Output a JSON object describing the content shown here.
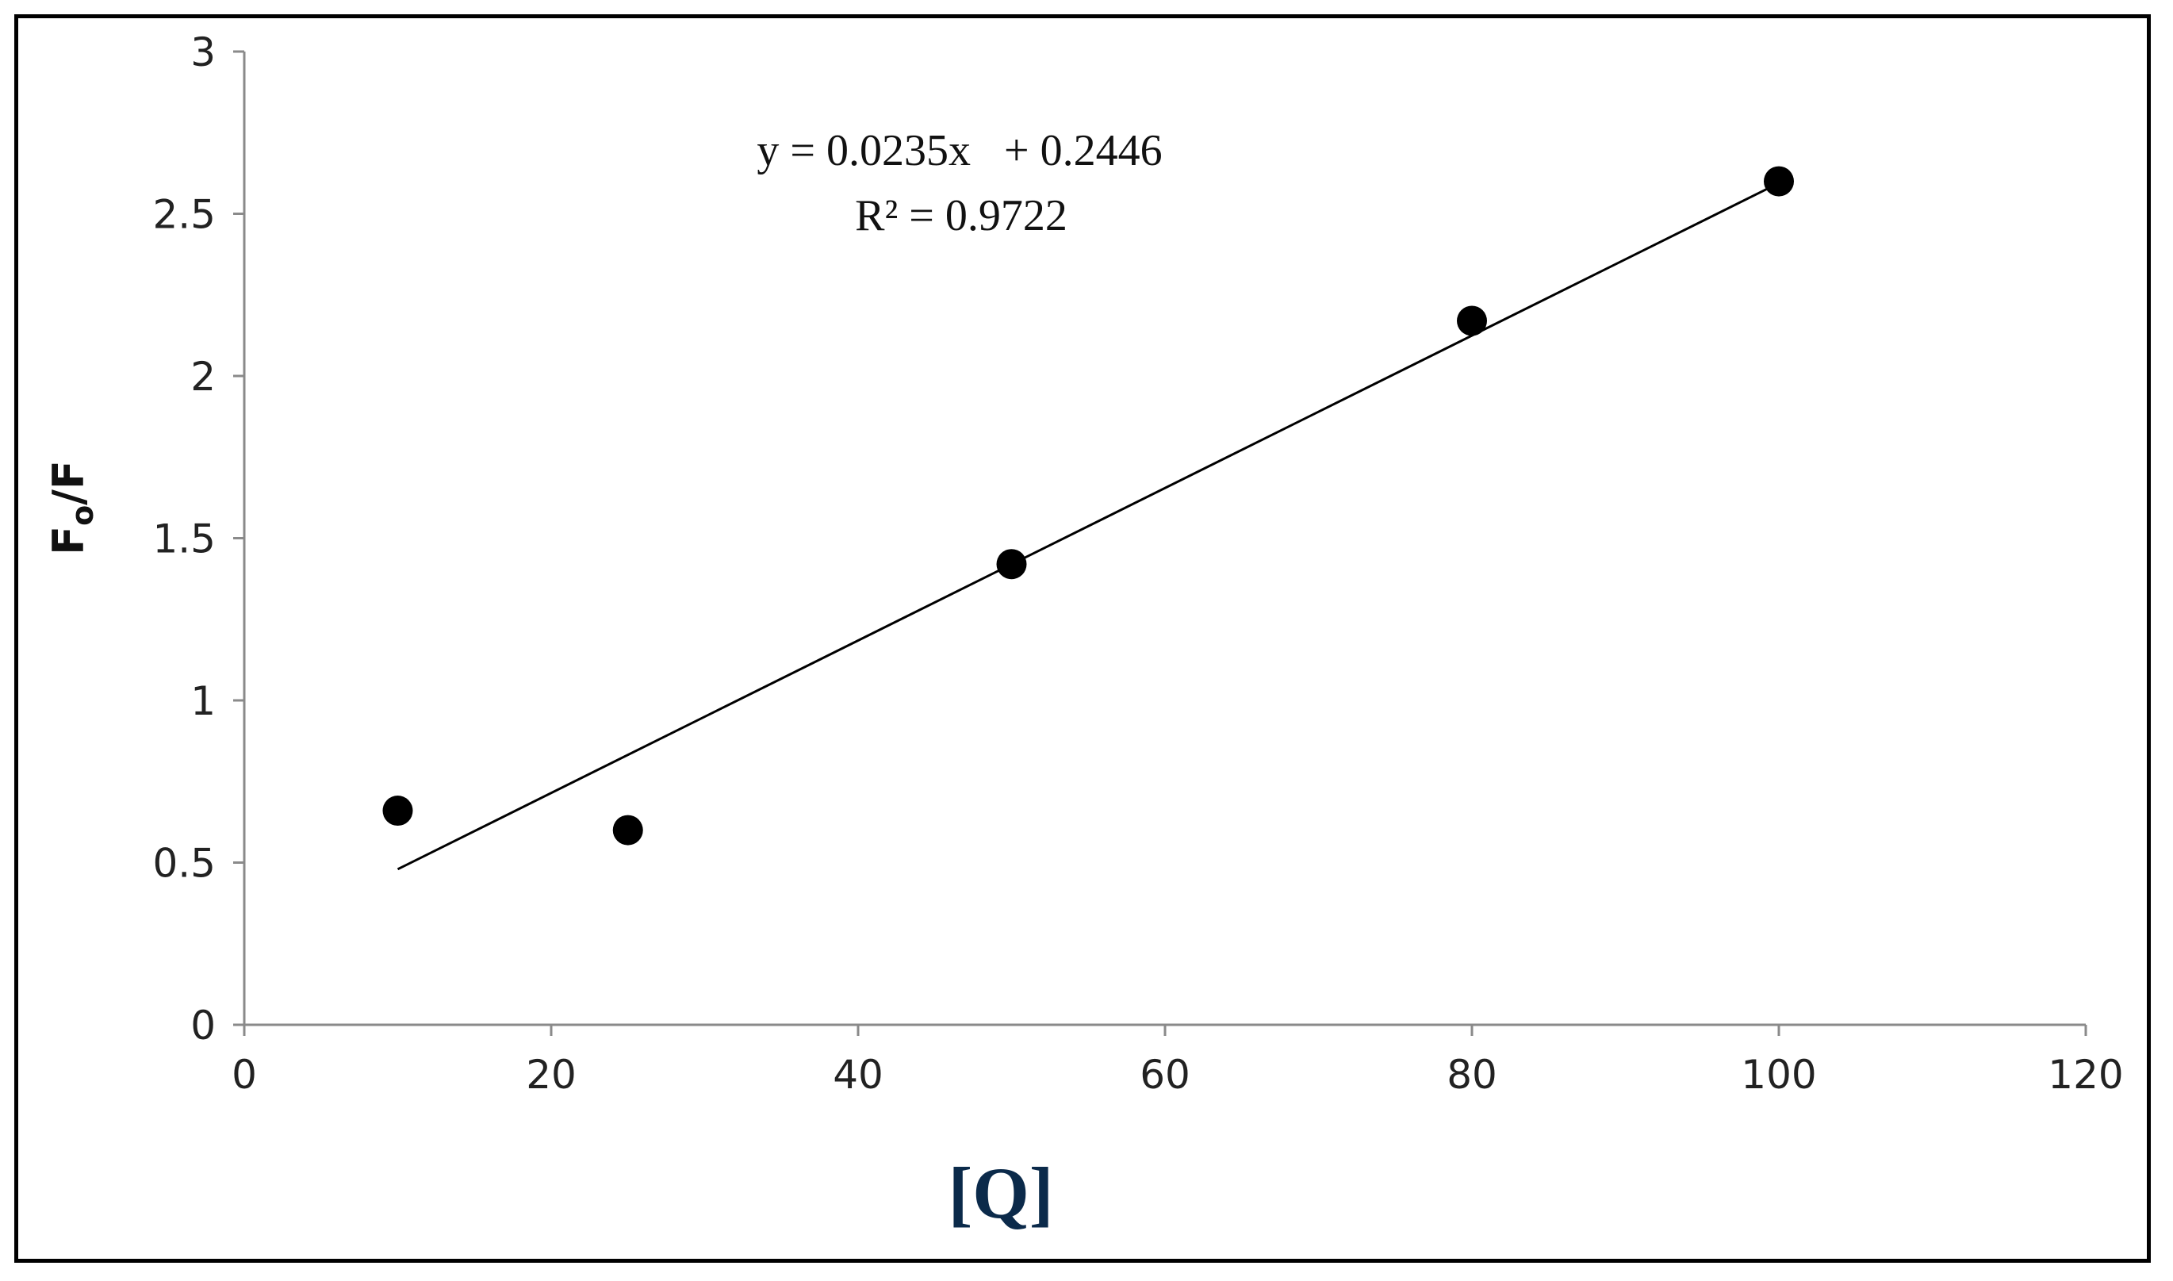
{
  "chart_data": {
    "type": "scatter",
    "x": [
      10,
      25,
      50,
      80,
      100
    ],
    "y": [
      0.66,
      0.6,
      1.42,
      2.17,
      2.6
    ],
    "xlim": [
      0,
      120
    ],
    "ylim": [
      0,
      3
    ],
    "xticks": [
      0,
      20,
      40,
      60,
      80,
      100,
      120
    ],
    "yticks": [
      0,
      0.5,
      1,
      1.5,
      2,
      2.5,
      3
    ],
    "xtick_labels": [
      "0",
      "20",
      "40",
      "60",
      "80",
      "100",
      "120"
    ],
    "ytick_labels": [
      "0",
      "0.5",
      "1",
      "1.5",
      "2",
      "2.5",
      "3"
    ],
    "xlabel": "[Q]",
    "ylabel": "Fo/F",
    "ylabel_main": "F",
    "ylabel_sub": "o",
    "ylabel_tail": "/F",
    "trendline": {
      "slope": 0.0235,
      "intercept": 0.2446,
      "x_range": [
        10,
        100
      ],
      "equation": "y = 0.0235x   + 0.2446",
      "r_squared": "R² = 0.9722"
    },
    "grid": false,
    "legend": "none",
    "marker_color": "#000000",
    "line_color": "#000000",
    "axis_color": "#8a8a8a",
    "xlabel_color": "#0b2a4a"
  }
}
